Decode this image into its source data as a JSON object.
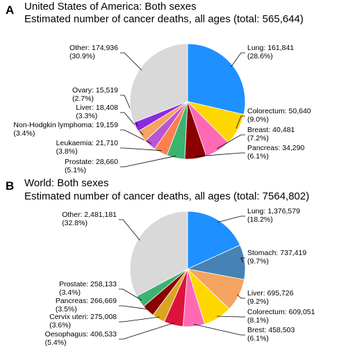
{
  "chart_data": [
    {
      "type": "pie",
      "panel": "A",
      "title": "United States of America: Both sexes",
      "subtitle": "Estimated number of cancer deaths, all ages (total: 565,644)",
      "slices": [
        {
          "label": "Lung: 161,841",
          "pct": "(28.6%)",
          "value": 161841,
          "color": "#1E90FF"
        },
        {
          "label": "Colorectum: 50,640",
          "pct": "(9.0%)",
          "value": 50640,
          "color": "#FFD700"
        },
        {
          "label": "Breast: 40,481",
          "pct": "(7.2%)",
          "value": 40481,
          "color": "#FF69B4"
        },
        {
          "label": "Pancreas: 34,290",
          "pct": "(6.1%)",
          "value": 34290,
          "color": "#8B0000"
        },
        {
          "label": "Prostate: 28,660",
          "pct": "(5.1%)",
          "value": 28660,
          "color": "#3CB371"
        },
        {
          "label": "Leukaemia: 21,710",
          "pct": "(3.8%)",
          "value": 21710,
          "color": "#FF7F50"
        },
        {
          "label": "Non-Hodgkin lymphoma: 19,159",
          "pct": "(3.4%)",
          "value": 19159,
          "color": "#BA55D3"
        },
        {
          "label": "Liver: 18,408",
          "pct": "(3.3%)",
          "value": 18408,
          "color": "#F4A460"
        },
        {
          "label": "Ovary: 15,519",
          "pct": "(2.7%)",
          "value": 15519,
          "color": "#8A2BE2"
        },
        {
          "label": "Other: 174,936",
          "pct": "(30.9%)",
          "value": 174936,
          "color": "#D9D9D9"
        }
      ]
    },
    {
      "type": "pie",
      "panel": "B",
      "title": "World: Both sexes",
      "subtitle": "Estimated number of cancer deaths, all ages (total: 7564,802)",
      "slices": [
        {
          "label": "Lung: 1,376,579",
          "pct": "(18.2%)",
          "value": 1376579,
          "color": "#1E90FF"
        },
        {
          "label": "Stomach: 737,419",
          "pct": "(9.7%)",
          "value": 737419,
          "color": "#4682B4"
        },
        {
          "label": "Liver: 695,726",
          "pct": "(9.2%)",
          "value": 695726,
          "color": "#F4A460"
        },
        {
          "label": "Colorectum: 609,051",
          "pct": "(8.1%)",
          "value": 609051,
          "color": "#FFD700"
        },
        {
          "label": "Brest: 458,503",
          "pct": "(6.1%)",
          "value": 458503,
          "color": "#FF69B4"
        },
        {
          "label": "Oesophagus: 406,533",
          "pct": "(5.4%)",
          "value": 406533,
          "color": "#DC143C"
        },
        {
          "label": "Cervix uteri: 275,008",
          "pct": "(3.6%)",
          "value": 275008,
          "color": "#DAA520"
        },
        {
          "label": "Pancreas: 266,669",
          "pct": "(3.5%)",
          "value": 266669,
          "color": "#8B0000"
        },
        {
          "label": "Prostate: 258,133",
          "pct": "(3.4%)",
          "value": 258133,
          "color": "#3CB371"
        },
        {
          "label": "Other: 2,481,181",
          "pct": "(32.8%)",
          "value": 2481181,
          "color": "#D9D9D9"
        }
      ]
    }
  ]
}
